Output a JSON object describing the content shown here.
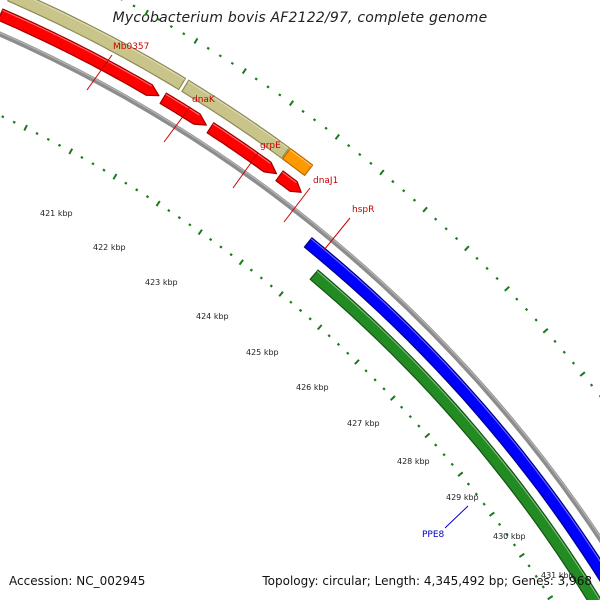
{
  "header": {
    "title": "Mycobacterium bovis AF2122/97, complete genome"
  },
  "footer": {
    "accession": "Accession: NC_002945",
    "summary": "Topology: circular; Length: 4,345,492 bp; Genes: 3,968"
  },
  "map": {
    "kbp_labels": [
      "421 kbp",
      "422 kbp",
      "423 kbp",
      "424 kbp",
      "425 kbp",
      "426 kbp",
      "427 kbp",
      "428 kbp",
      "429 kbp",
      "430 kbp",
      "431 kbp"
    ],
    "gene_labels": [
      {
        "text": "Mb0357",
        "color": "#cc0000"
      },
      {
        "text": "dnaK",
        "color": "#cc0000"
      },
      {
        "text": "grpE",
        "color": "#cc0000"
      },
      {
        "text": "dnaJ1",
        "color": "#cc0000"
      },
      {
        "text": "hspR",
        "color": "#cc0000"
      },
      {
        "text": "PPE8",
        "color": "#0000cc"
      }
    ],
    "colors": {
      "forward_gene": "#ff0000",
      "forward_gene_dark": "#a00000",
      "operon": "#c8c48a",
      "operon_dark": "#8e8a55",
      "hspR": "#ff9900",
      "hspR_dark": "#b86a00",
      "reverse_gene": "#0000ff",
      "reverse_gene_dark": "#00008a",
      "reverse_band": "#228b22",
      "reverse_band_dark": "#145214",
      "backbone": "#8c8c8c",
      "tick_green": "#1a7a1a"
    }
  }
}
